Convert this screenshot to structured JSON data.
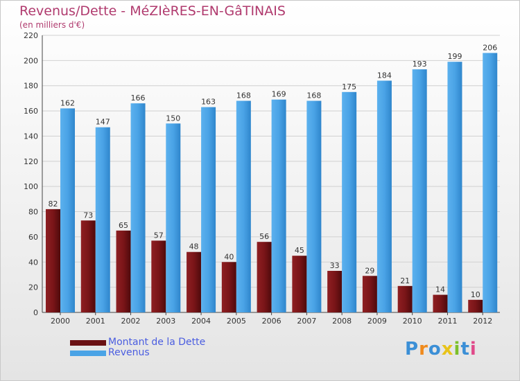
{
  "chart_data": {
    "type": "bar",
    "title": "Revenus/Dette - MéZIèRES-EN-GâTINAIS",
    "subtitle": "(en milliers d'€)",
    "categories": [
      "2000",
      "2001",
      "2002",
      "2003",
      "2004",
      "2005",
      "2006",
      "2007",
      "2008",
      "2009",
      "2010",
      "2011",
      "2012"
    ],
    "series": [
      {
        "name": "Montant de la Dette",
        "color": "#7a1518",
        "values": [
          82,
          73,
          65,
          57,
          48,
          40,
          56,
          45,
          33,
          29,
          21,
          14,
          10
        ]
      },
      {
        "name": "Revenus",
        "color": "#4aa3e6",
        "values": [
          162,
          147,
          166,
          150,
          163,
          168,
          169,
          168,
          175,
          184,
          193,
          199,
          206
        ]
      }
    ],
    "ylim": [
      0,
      220
    ],
    "yticks": [
      0,
      20,
      40,
      60,
      80,
      100,
      120,
      140,
      160,
      180,
      200,
      220
    ],
    "grid": true,
    "legend_position": "bottom-left"
  },
  "logo": {
    "text": "Proxiti",
    "colors": [
      "#3b8fd6",
      "#f08a1c",
      "#3b8fd6",
      "#e8c31a",
      "#7dbf2a",
      "#3b8fd6",
      "#e04a8a"
    ]
  }
}
